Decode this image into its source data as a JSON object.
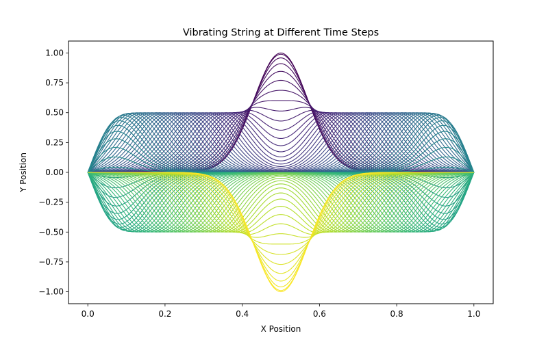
{
  "chart_data": {
    "type": "line",
    "title": "Vibrating String at Different Time Steps",
    "xlabel": "X Position",
    "ylabel": "Y Position",
    "xlim": [
      -0.05,
      1.05
    ],
    "ylim": [
      -1.1,
      1.1
    ],
    "x_ticks": [
      0.0,
      0.2,
      0.4,
      0.6,
      0.8,
      1.0
    ],
    "x_tick_labels": [
      "0.0",
      "0.2",
      "0.4",
      "0.6",
      "0.8",
      "1.0"
    ],
    "y_ticks": [
      1.0,
      0.75,
      0.5,
      0.25,
      0.0,
      -0.25,
      -0.5,
      -0.75,
      -1.0
    ],
    "y_tick_labels": [
      "1.00",
      "0.75",
      "0.50",
      "0.25",
      "0.00",
      "−0.25",
      "−0.50",
      "−0.75",
      "−1.00"
    ],
    "grid": false,
    "colormap": "viridis",
    "colormap_stops": [
      "#440154",
      "#482878",
      "#3e4a89",
      "#31688e",
      "#26828e",
      "#1f9e89",
      "#35b779",
      "#6ece58",
      "#b5de2b",
      "#fde725"
    ],
    "series_count": 100,
    "initial_shape": "gaussian pulse centered at x = 0.5, peak 1.00",
    "final_shape": "gaussian pulse centered at x = 0.5, trough -1.00",
    "split_pulse_amplitude": 0.5,
    "x_range": [
      0.0,
      1.0
    ]
  }
}
